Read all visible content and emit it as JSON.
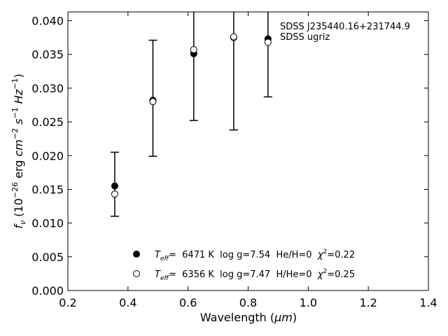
{
  "chart_data": {
    "type": "scatter",
    "title": "",
    "xlabel_prefix": "Wavelength (",
    "xlabel_unit": "μm",
    "xlabel_suffix": ")",
    "ylabel_f": "f",
    "ylabel_nu": "ν",
    "ylabel_open": " (10",
    "ylabel_exp1": "−26",
    "ylabel_erg": " erg ",
    "ylabel_cm": "cm",
    "ylabel_exp2": "−2",
    "ylabel_s": " s",
    "ylabel_exp3": "−1",
    "ylabel_hz": " Hz",
    "ylabel_exp4": "−1",
    "ylabel_close": ")",
    "xlim": [
      0.2,
      1.4
    ],
    "ylim": [
      0.0,
      0.0413
    ],
    "x_ticks": [
      "0.2",
      "0.4",
      "0.6",
      "0.8",
      "1.0",
      "1.2",
      "1.4"
    ],
    "y_ticks": [
      "0.000",
      "0.005",
      "0.010",
      "0.015",
      "0.020",
      "0.025",
      "0.030",
      "0.035",
      "0.040"
    ],
    "annotation": [
      "SDSS J235440.16+231744.9",
      "SDSS ugriz"
    ],
    "observed": {
      "x": [
        0.356,
        0.483,
        0.619,
        0.752,
        0.866
      ],
      "lower": [
        0.011,
        0.0199,
        0.0252,
        0.0238,
        0.0287
      ],
      "upper": [
        0.0205,
        0.0371,
        0.0413,
        0.0413,
        0.0413
      ]
    },
    "series": [
      {
        "marker": "filled",
        "x": [
          0.356,
          0.483,
          0.619,
          0.752,
          0.866
        ],
        "y": [
          0.0155,
          0.0282,
          0.0351,
          0.0375,
          0.0373
        ]
      },
      {
        "marker": "open",
        "x": [
          0.356,
          0.483,
          0.619,
          0.752,
          0.866
        ],
        "y": [
          0.0143,
          0.028,
          0.0357,
          0.0376,
          0.0368
        ]
      }
    ],
    "legend": [
      {
        "marker": "filled",
        "t_sym": "T",
        "t_sub": "eff",
        "temp": "=  6471 K  log g=7.54  He/H=0  ",
        "chi_sym": "χ",
        "chi_exp": "2",
        "chi_val": "=0.22"
      },
      {
        "marker": "open",
        "t_sym": "T",
        "t_sub": "eff",
        "temp": "=  6356 K  log g=7.47  H/He=0  ",
        "chi_sym": "χ",
        "chi_exp": "2",
        "chi_val": "=0.25"
      }
    ],
    "legend_position": "lower-center",
    "grid": false
  }
}
